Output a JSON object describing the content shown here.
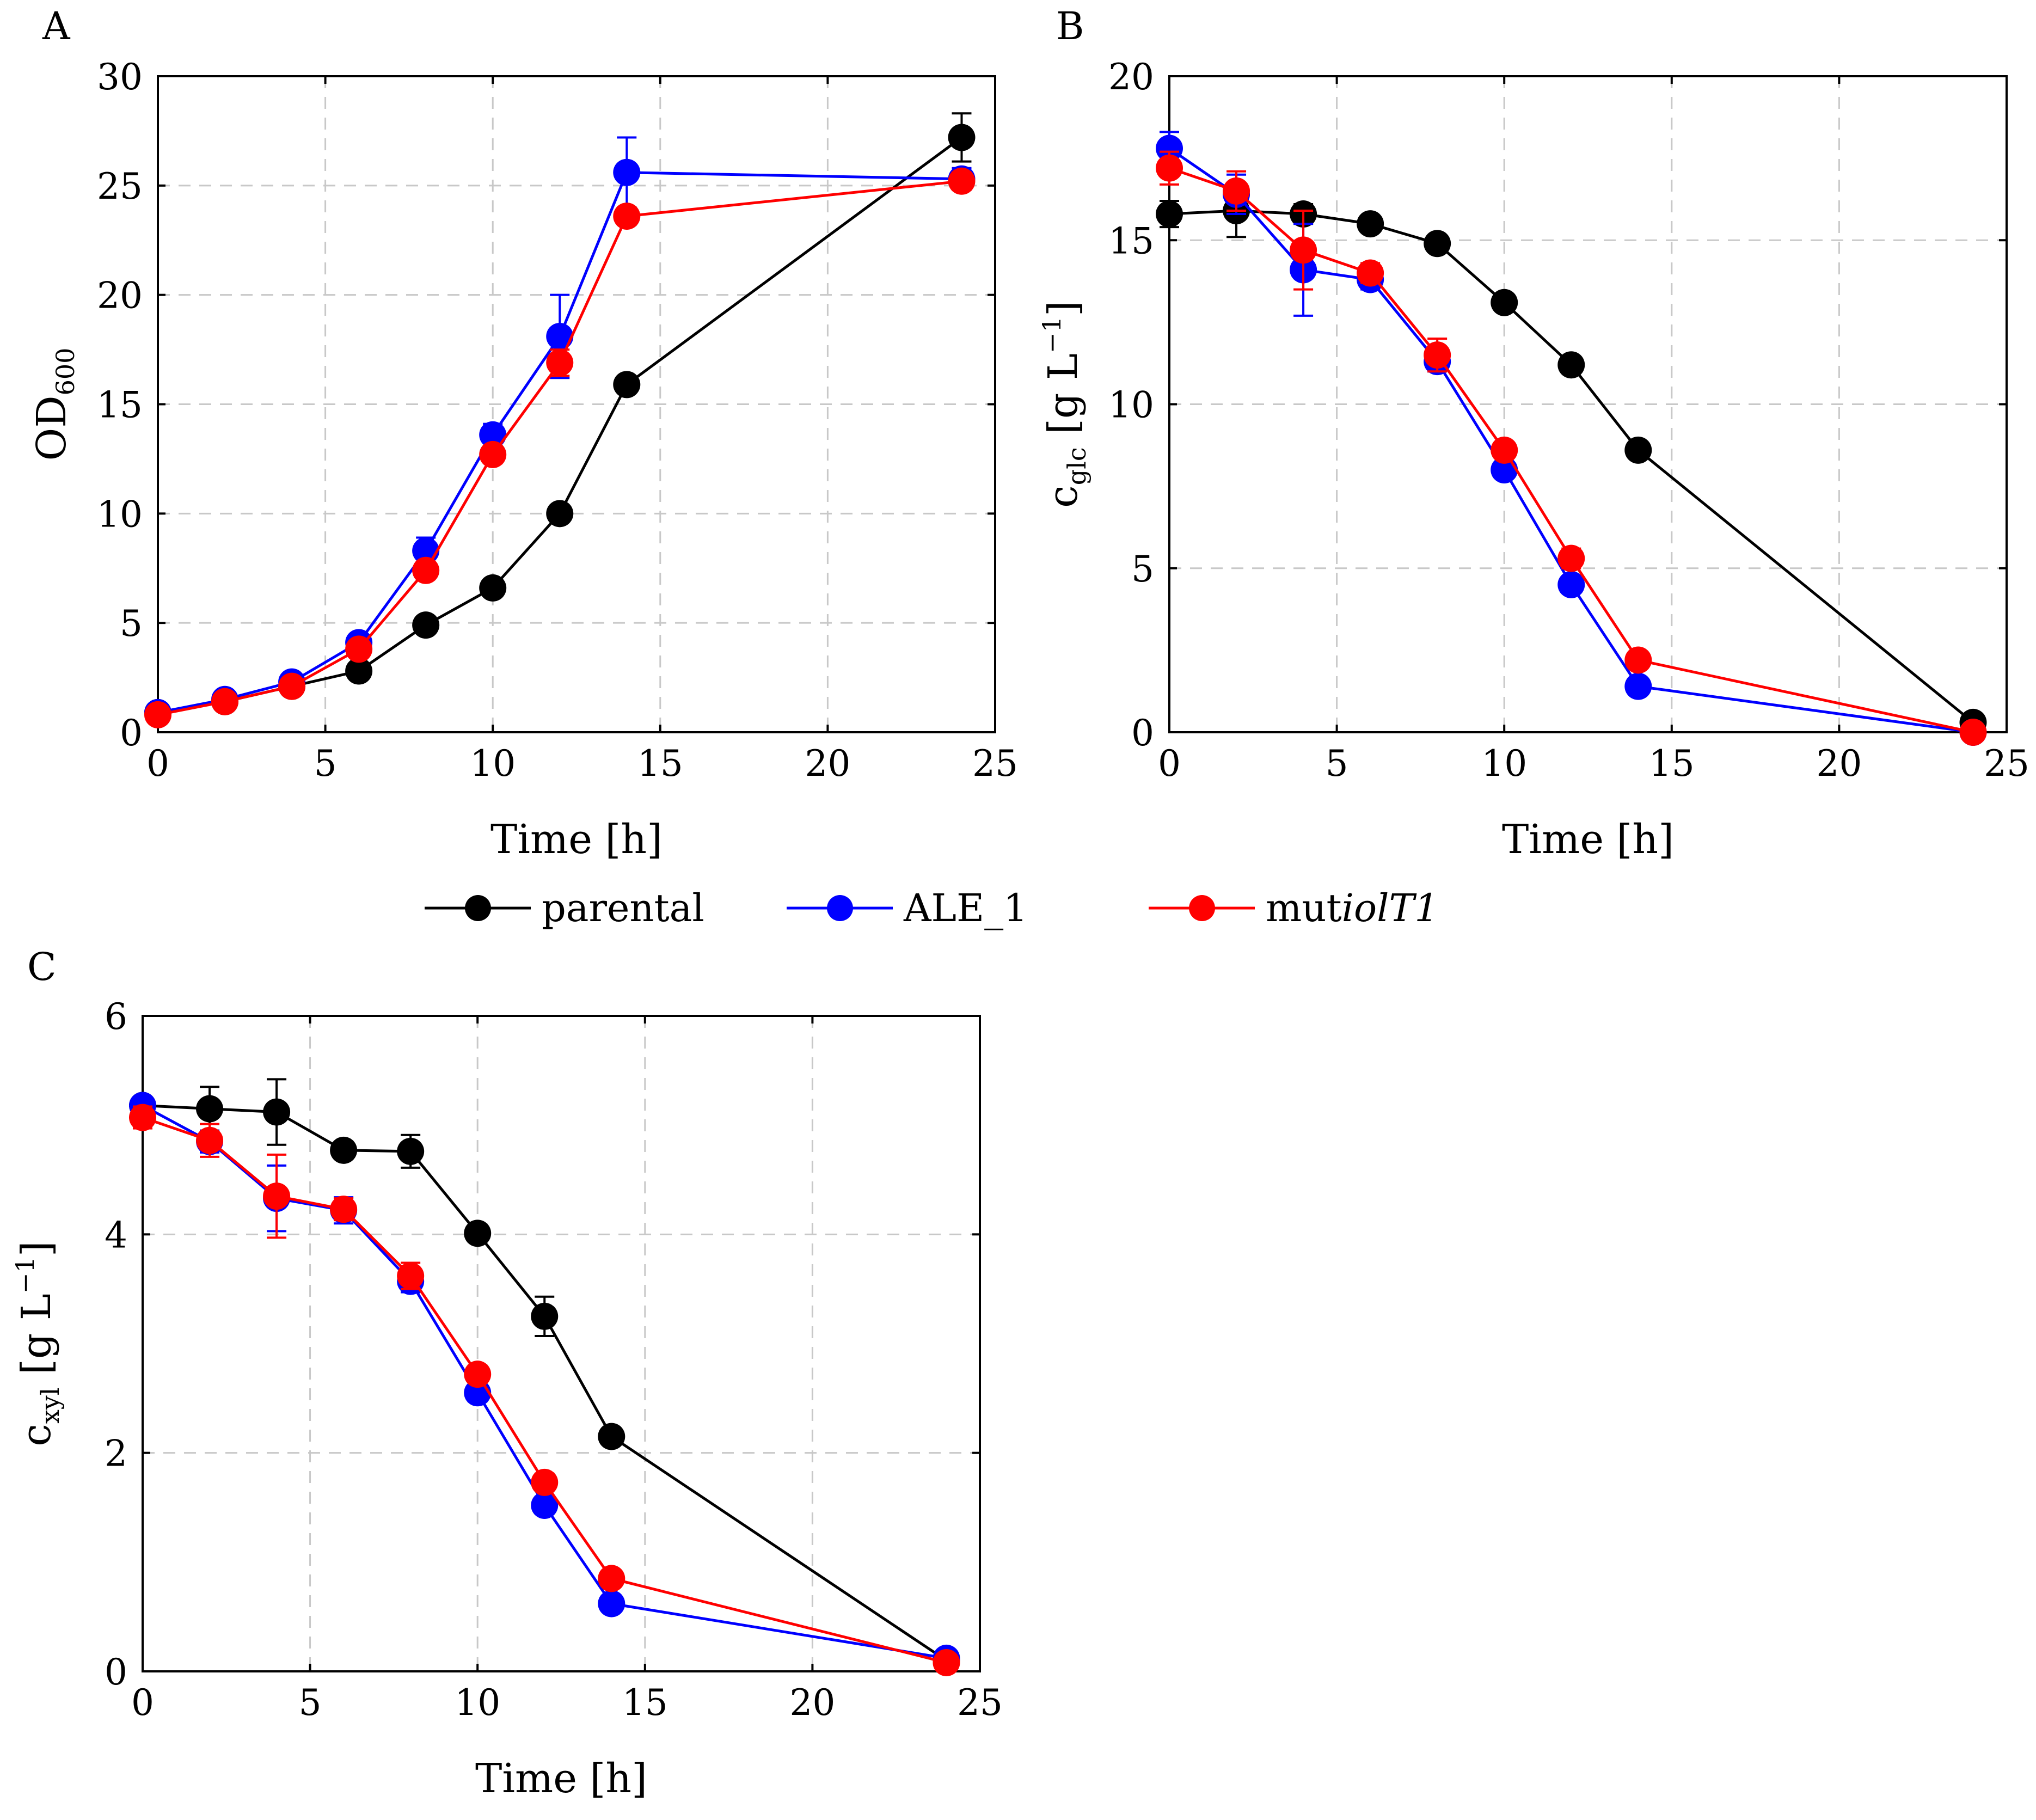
{
  "legend": {
    "entries": [
      {
        "name": "parental",
        "color": "#000000"
      },
      {
        "name": "ALE_1",
        "color": "#0000ff"
      },
      {
        "name": "mut",
        "name_italic": "iolT1",
        "color": "#ff0000"
      }
    ]
  },
  "chart_data": [
    {
      "type": "line",
      "panel_label": "A",
      "title": "",
      "xlabel": "Time [h]",
      "ylabel": "OD",
      "ylabel_sub": "600",
      "xlim": [
        0,
        25
      ],
      "ylim": [
        0,
        30
      ],
      "xticks": [
        0,
        5,
        10,
        15,
        20,
        25
      ],
      "yticks": [
        0,
        5,
        10,
        15,
        20,
        25,
        30
      ],
      "grid": true,
      "x": [
        0,
        2,
        4,
        6,
        8,
        10,
        12,
        14,
        24
      ],
      "series": [
        {
          "name": "parental",
          "color": "#000000",
          "values": [
            0.9,
            1.4,
            2.1,
            2.8,
            4.9,
            6.6,
            10.0,
            15.9,
            27.2
          ],
          "errors": [
            0.1,
            0.1,
            0.1,
            0.2,
            0.2,
            0.3,
            0.3,
            0.3,
            1.1
          ]
        },
        {
          "name": "ALE_1",
          "color": "#0000ff",
          "values": [
            0.9,
            1.5,
            2.3,
            4.1,
            8.3,
            13.6,
            18.1,
            25.6,
            25.3
          ],
          "errors": [
            0.1,
            0.1,
            0.1,
            0.2,
            0.6,
            0.5,
            1.9,
            1.6,
            0.5
          ]
        },
        {
          "name": "mutiolT1",
          "color": "#ff0000",
          "values": [
            0.8,
            1.4,
            2.1,
            3.8,
            7.4,
            12.7,
            16.9,
            23.6,
            25.2
          ],
          "errors": [
            0.1,
            0.1,
            0.1,
            0.2,
            0.4,
            0.4,
            0.6,
            0.4,
            0.4
          ]
        }
      ]
    },
    {
      "type": "line",
      "panel_label": "B",
      "title": "",
      "xlabel": "Time [h]",
      "ylabel": "c",
      "ylabel_sub": "glc",
      "ylabel_unit": "[g L",
      "ylabel_sup": "−1",
      "ylabel_close": "]",
      "xlim": [
        0,
        25
      ],
      "ylim": [
        0,
        20
      ],
      "xticks": [
        0,
        5,
        10,
        15,
        20,
        25
      ],
      "yticks": [
        0,
        5,
        10,
        15,
        20
      ],
      "grid": true,
      "x": [
        0,
        2,
        4,
        6,
        8,
        10,
        12,
        14,
        24
      ],
      "series": [
        {
          "name": "parental",
          "color": "#000000",
          "values": [
            15.8,
            15.9,
            15.8,
            15.5,
            14.9,
            13.1,
            11.2,
            8.6,
            0.3
          ],
          "errors": [
            0.4,
            0.8,
            0.3,
            0.2,
            0.2,
            0.2,
            0.2,
            0.2,
            0.1
          ]
        },
        {
          "name": "ALE_1",
          "color": "#0000ff",
          "values": [
            17.8,
            16.4,
            14.1,
            13.8,
            11.3,
            8.0,
            4.5,
            1.4,
            0.0
          ],
          "errors": [
            0.5,
            0.6,
            1.4,
            0.3,
            0.3,
            0.2,
            0.2,
            0.2,
            0.1
          ]
        },
        {
          "name": "mutiolT1",
          "color": "#ff0000",
          "values": [
            17.2,
            16.5,
            14.7,
            14.0,
            11.5,
            8.6,
            5.3,
            2.2,
            0.0
          ],
          "errors": [
            0.5,
            0.6,
            1.2,
            0.3,
            0.5,
            0.2,
            0.3,
            0.2,
            0.1
          ]
        }
      ]
    },
    {
      "type": "line",
      "panel_label": "C",
      "title": "",
      "xlabel": "Time [h]",
      "ylabel": "c",
      "ylabel_sub": "xyl",
      "ylabel_unit": "[g L",
      "ylabel_sup": "−1",
      "ylabel_close": "]",
      "xlim": [
        0,
        25
      ],
      "ylim": [
        0,
        6
      ],
      "xticks": [
        0,
        5,
        10,
        15,
        20,
        25
      ],
      "yticks": [
        0,
        2,
        4,
        6
      ],
      "grid": true,
      "x": [
        0,
        2,
        4,
        6,
        8,
        10,
        12,
        14,
        24
      ],
      "series": [
        {
          "name": "parental",
          "color": "#000000",
          "values": [
            5.18,
            5.15,
            5.12,
            4.77,
            4.76,
            4.01,
            3.25,
            2.15,
            0.1
          ],
          "errors": [
            0.05,
            0.2,
            0.3,
            0.08,
            0.15,
            0.08,
            0.18,
            0.04,
            0.03
          ]
        },
        {
          "name": "ALE_1",
          "color": "#0000ff",
          "values": [
            5.18,
            4.85,
            4.33,
            4.22,
            3.57,
            2.55,
            1.52,
            0.62,
            0.12
          ],
          "errors": [
            0.05,
            0.1,
            0.3,
            0.12,
            0.1,
            0.08,
            0.08,
            0.05,
            0.03
          ]
        },
        {
          "name": "mutiolT1",
          "color": "#ff0000",
          "values": [
            5.07,
            4.86,
            4.35,
            4.23,
            3.62,
            2.72,
            1.73,
            0.85,
            0.08
          ],
          "errors": [
            0.1,
            0.15,
            0.38,
            0.1,
            0.12,
            0.08,
            0.08,
            0.05,
            0.03
          ]
        }
      ]
    }
  ]
}
